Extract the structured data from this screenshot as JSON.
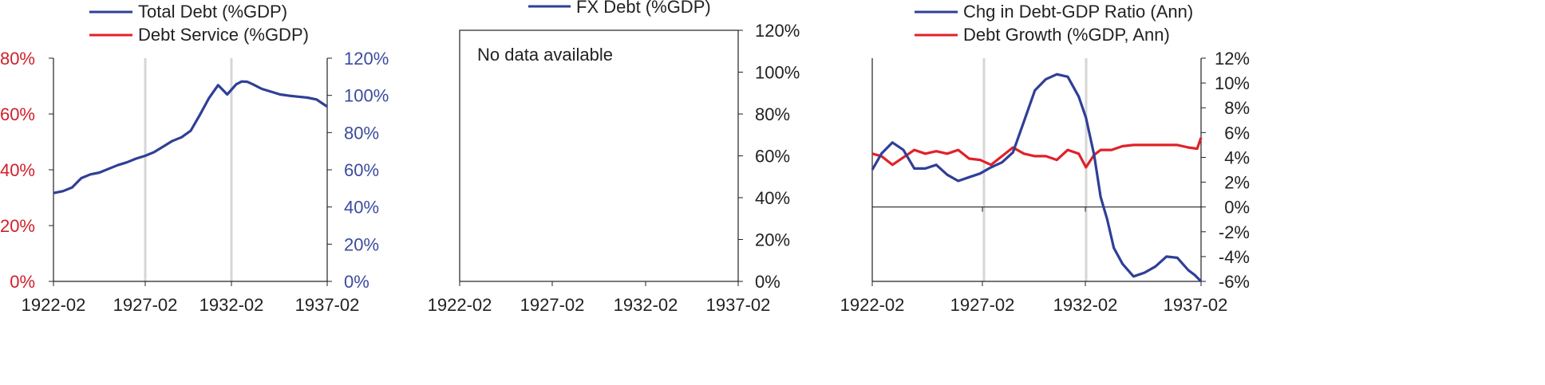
{
  "colors": {
    "blue": "#2f3f97",
    "red": "#e02128",
    "axis": "#222222",
    "shade": "#d6d6d6",
    "tick_blue": "#3b4b9e",
    "tick_red": "#d0202b"
  },
  "chart_data": [
    {
      "type": "line",
      "legend": [
        "Total Debt (%GDP)",
        "Debt Service (%GDP)"
      ],
      "x_ticks": [
        "1922-02",
        "1927-02",
        "1932-02",
        "1937-02"
      ],
      "left_ticks": [
        "80%",
        "60%",
        "40%",
        "20%",
        "0%"
      ],
      "right_ticks": [
        "120%",
        "100%",
        "80%",
        "60%",
        "40%",
        "20%",
        "0%"
      ],
      "left_ylim": [
        0,
        80
      ],
      "right_ylim": [
        0,
        120
      ],
      "xlim": [
        1922.08,
        1937.08
      ],
      "shaded_years": [
        1927.08,
        1931.83
      ],
      "series": [
        {
          "name": "Total Debt (%GDP)",
          "axis": "right",
          "x": [
            1922.08,
            1922.6,
            1923.1,
            1923.6,
            1924.1,
            1924.6,
            1925.1,
            1925.6,
            1926.1,
            1926.6,
            1927.1,
            1927.6,
            1928.1,
            1928.6,
            1929.1,
            1929.6,
            1930.1,
            1930.6,
            1931.1,
            1931.6,
            1932.1,
            1932.4,
            1932.7,
            1933.0,
            1933.5,
            1934.0,
            1934.5,
            1935.0,
            1935.5,
            1936.0,
            1936.5,
            1936.8,
            1937.08
          ],
          "values": [
            47.5,
            48.5,
            50.5,
            55.5,
            57.5,
            58.5,
            60.5,
            62.5,
            64.0,
            66.0,
            67.5,
            69.5,
            72.5,
            75.5,
            77.5,
            81.0,
            89.5,
            98.5,
            105.5,
            100.5,
            106.0,
            107.5,
            107.3,
            106.0,
            103.5,
            102.0,
            100.5,
            99.8,
            99.3,
            98.8,
            97.8,
            95.8,
            94.0
          ]
        },
        {
          "name": "Debt Service (%GDP)",
          "axis": "left",
          "x": [],
          "values": []
        }
      ]
    },
    {
      "type": "line",
      "legend": [
        "FX Debt (%GDP)"
      ],
      "note": "No data available",
      "x_ticks": [
        "1922-02",
        "1927-02",
        "1932-02",
        "1937-02"
      ],
      "right_ticks": [
        "120%",
        "100%",
        "80%",
        "60%",
        "40%",
        "20%",
        "0%"
      ],
      "right_ylim": [
        0,
        120
      ],
      "series": [
        {
          "name": "FX Debt (%GDP)",
          "x": [],
          "values": []
        }
      ]
    },
    {
      "type": "line",
      "legend": [
        "Chg in Debt-GDP Ratio (Ann)",
        "Debt Growth (%GDP, Ann)"
      ],
      "x_ticks": [
        "1922-02",
        "1927-02",
        "1932-02",
        "1937-02"
      ],
      "right_ticks": [
        "12%",
        "10%",
        "8%",
        "6%",
        "4%",
        "2%",
        "0%",
        "-2%",
        "-4%",
        "-6%"
      ],
      "right_ylim": [
        -6,
        12
      ],
      "xlim": [
        1922.08,
        1937.08
      ],
      "shaded_years": [
        1927.08,
        1931.83
      ],
      "series": [
        {
          "name": "Chg in Debt-GDP Ratio (Ann)",
          "x": [
            1922.08,
            1922.5,
            1923.0,
            1923.5,
            1924.0,
            1924.5,
            1925.0,
            1925.5,
            1926.0,
            1926.5,
            1927.0,
            1927.5,
            1928.0,
            1928.5,
            1929.0,
            1929.5,
            1930.0,
            1930.5,
            1931.0,
            1931.5,
            1931.83,
            1932.2,
            1932.5,
            1932.8,
            1933.1,
            1933.5,
            1934.0,
            1934.5,
            1935.0,
            1935.5,
            1936.0,
            1936.5,
            1936.8,
            1937.08
          ],
          "values": [
            3.0,
            4.3,
            5.2,
            4.6,
            3.1,
            3.1,
            3.4,
            2.6,
            2.1,
            2.4,
            2.7,
            3.2,
            3.6,
            4.4,
            6.9,
            9.4,
            10.3,
            10.7,
            10.5,
            8.9,
            7.2,
            4.2,
            0.8,
            -1.0,
            -3.3,
            -4.6,
            -5.6,
            -5.3,
            -4.8,
            -4.0,
            -4.1,
            -5.1,
            -5.5,
            -6.0
          ]
        },
        {
          "name": "Debt Growth (%GDP, Ann)",
          "x": [
            1922.08,
            1922.5,
            1923.0,
            1923.5,
            1924.0,
            1924.5,
            1925.0,
            1925.5,
            1926.0,
            1926.5,
            1927.0,
            1927.5,
            1928.0,
            1928.5,
            1929.0,
            1929.5,
            1930.0,
            1930.5,
            1931.0,
            1931.5,
            1931.83,
            1932.2,
            1932.5,
            1933.0,
            1933.5,
            1934.0,
            1934.5,
            1935.0,
            1935.5,
            1936.0,
            1936.5,
            1936.9,
            1937.08
          ],
          "values": [
            4.3,
            4.1,
            3.4,
            4.0,
            4.6,
            4.3,
            4.5,
            4.3,
            4.6,
            3.9,
            3.8,
            3.4,
            4.1,
            4.8,
            4.3,
            4.1,
            4.1,
            3.8,
            4.6,
            4.3,
            3.2,
            4.2,
            4.6,
            4.6,
            4.9,
            5.0,
            5.0,
            5.0,
            5.0,
            5.0,
            4.8,
            4.7,
            5.6
          ]
        }
      ]
    }
  ]
}
